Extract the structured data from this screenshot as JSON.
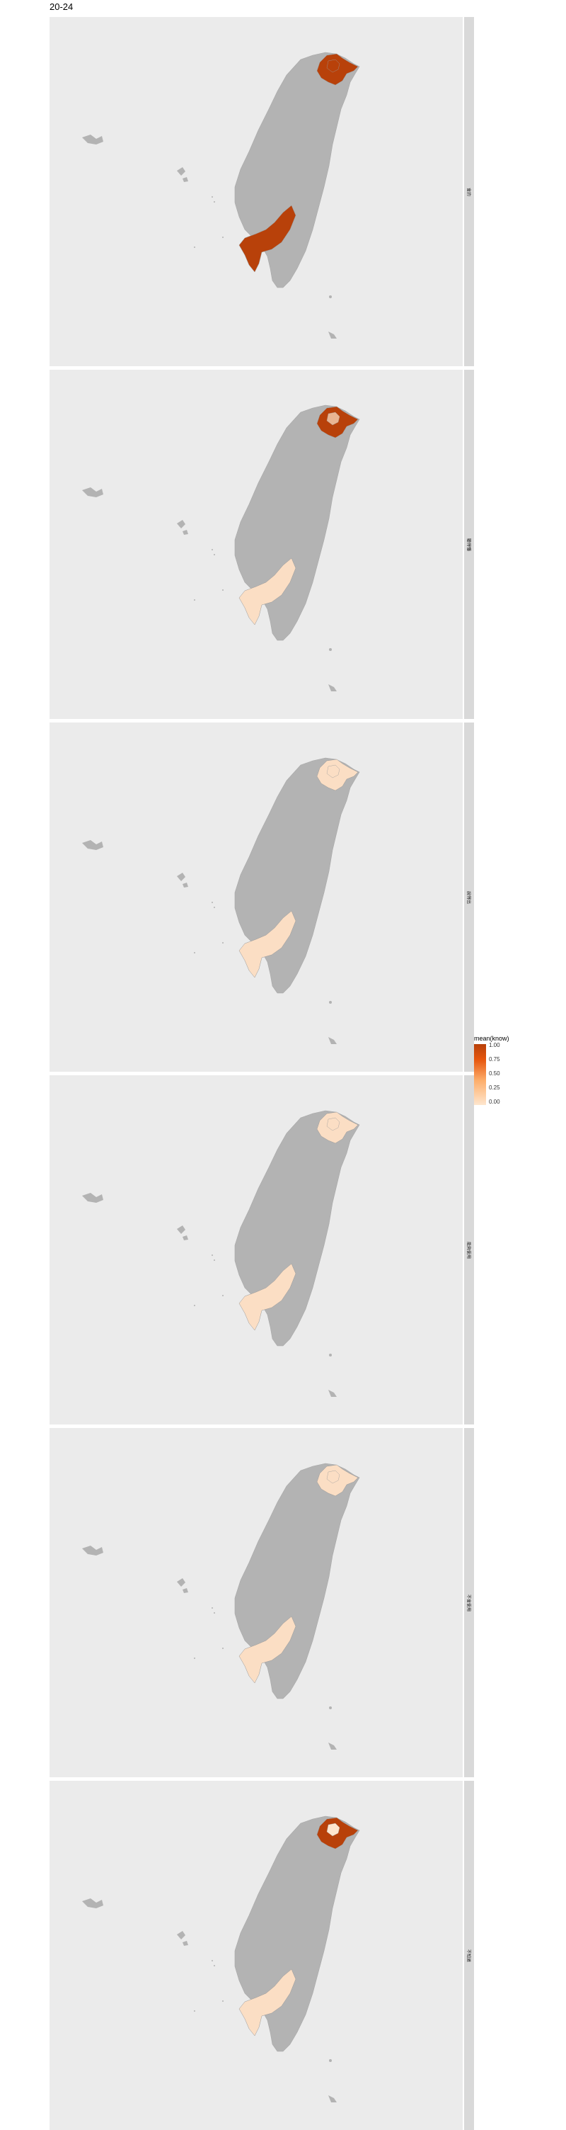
{
  "plot": {
    "title": "20-24"
  },
  "legend": {
    "title": "mean(know)",
    "ticks": [
      "1.00",
      "0.75",
      "0.50",
      "0.25",
      "0.00"
    ],
    "low_color": "#fee6ce",
    "high_color": "#b8410a"
  },
  "colors": {
    "panel_bg": "#ebebeb",
    "strip_bg": "#d9d9d9",
    "land": "#b3b3b3"
  },
  "facets": [
    {
      "strip_label": "會的",
      "regions": {
        "north": 1.0,
        "south": 1.0,
        "inner_north": 1.0
      }
    },
    {
      "strip_label": "聽得懂",
      "regions": {
        "north": 1.0,
        "south": 0.05,
        "inner_north": 0.3
      }
    },
    {
      "strip_label": "說得出",
      "regions": {
        "north": 0.05,
        "south": 0.05,
        "inner_north": 0.05
      }
    },
    {
      "strip_label": "能夠使用",
      "regions": {
        "north": 0.05,
        "south": 0.05,
        "inner_north": 0.05
      }
    },
    {
      "strip_label": "不會使用",
      "regions": {
        "north": 0.05,
        "south": 0.05,
        "inner_north": 0.05
      }
    },
    {
      "strip_label": "不知道",
      "regions": {
        "north": 1.0,
        "south": 0.05,
        "inner_north": 0.0
      }
    }
  ]
}
